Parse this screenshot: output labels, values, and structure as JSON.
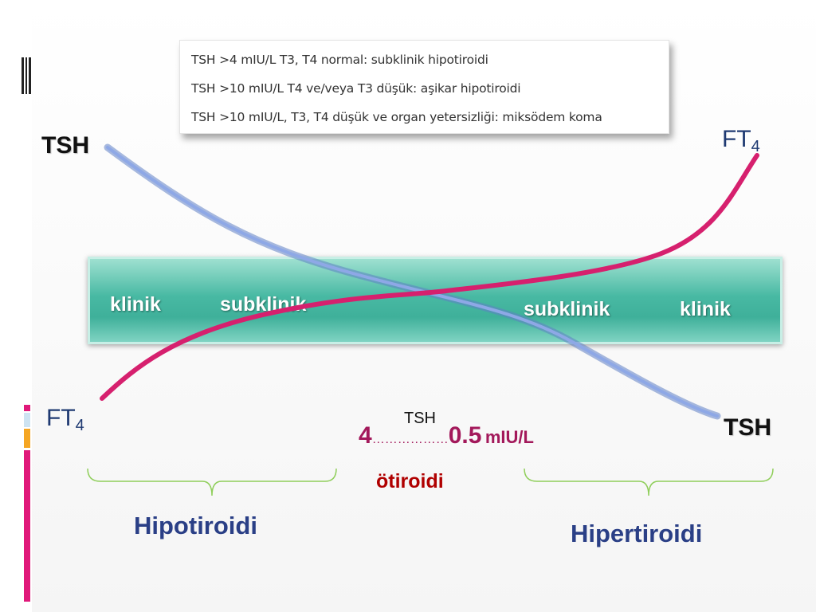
{
  "info_box": {
    "lines": [
      "TSH >4 mIU/L  T3, T4 normal:  subklinik hipotiroidi",
      "TSH >10 mIU/L  T4 ve/veya T3 düşük: aşikar hipotiroidi",
      "TSH >10 mIU/L, T3, T4 düşük ve organ yetersizliği: miksödem koma"
    ]
  },
  "band": {
    "left_labels": [
      "klinik",
      "subklinik"
    ],
    "right_labels": [
      "subklinik",
      "klinik"
    ]
  },
  "curves": {
    "tsh": {
      "label_left": "TSH",
      "label_right": "TSH",
      "color": "#6f8fd6"
    },
    "ft4": {
      "label_left_main": "FT",
      "label_left_sub": "4",
      "label_right_main": "FT",
      "label_right_sub": "4",
      "color": "#d6206e"
    }
  },
  "scale": {
    "heading": "TSH",
    "high": "4",
    "dots": "………………",
    "low": "0.5",
    "unit": "mIU/L",
    "middle_label": "ötiroidi"
  },
  "sections": {
    "left": "Hipotiroidi",
    "right": "Hipertiroidi"
  },
  "colors": {
    "teal_band": "#48b9a3",
    "accent_pink": "#e0197a",
    "accent_orange": "#f5a623",
    "accent_blue": "#cde3f2",
    "bracket_green": "#8fce5a"
  }
}
